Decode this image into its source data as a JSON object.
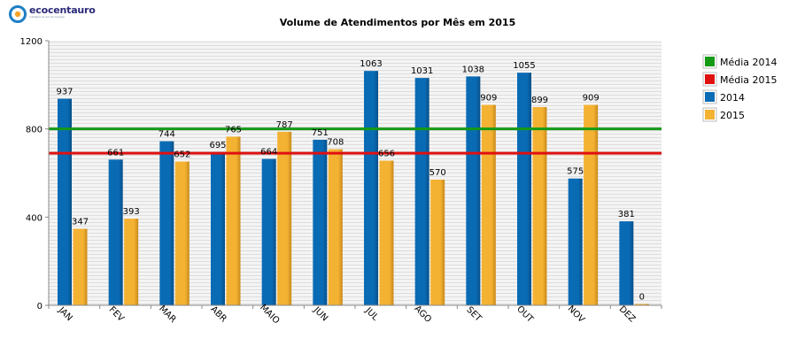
{
  "logo": {
    "name": "ecocentauro",
    "tagline": "inteligência em tecnologia"
  },
  "chart_data": {
    "type": "bar",
    "title": "Volume de Atendimentos por Mês em 2015",
    "xlabel": "",
    "ylabel": "",
    "categories": [
      "JAN",
      "FEV",
      "MAR",
      "ABR",
      "MAIO",
      "JUN",
      "JUL",
      "AGO",
      "SET",
      "OUT",
      "NOV",
      "DEZ"
    ],
    "series": [
      {
        "name": "2014",
        "color": "#0a6bb5",
        "values": [
          937,
          661,
          744,
          695,
          664,
          751,
          1063,
          1031,
          1038,
          1055,
          575,
          381
        ]
      },
      {
        "name": "2015",
        "color": "#f4b233",
        "values": [
          347,
          393,
          652,
          765,
          787,
          708,
          656,
          570,
          909,
          899,
          909,
          0
        ]
      }
    ],
    "reference_lines": [
      {
        "name": "Média 2014",
        "color": "#159a15",
        "value": 800
      },
      {
        "name": "Média 2015",
        "color": "#e01010",
        "value": 690
      }
    ],
    "ylim": [
      0,
      1200
    ],
    "yticks": [
      0,
      400,
      800,
      1200
    ],
    "grid": true,
    "legend_position": "right"
  }
}
